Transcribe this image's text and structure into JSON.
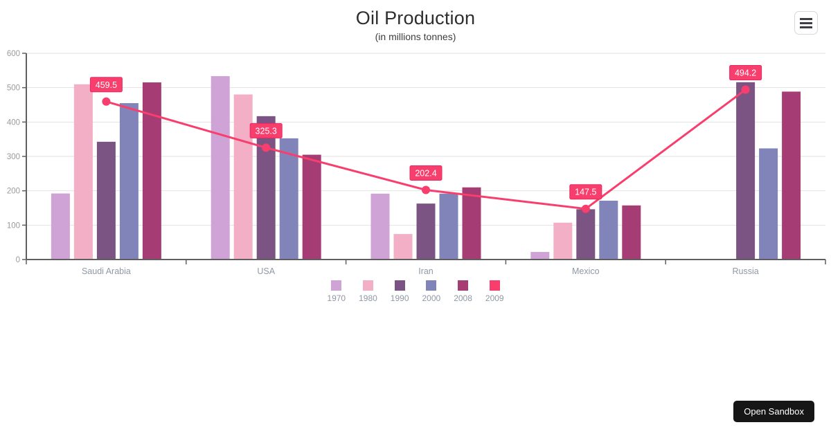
{
  "chart_data": {
    "type": "combo-bar-line",
    "title": "Oil Production",
    "subtitle": "(in millions tonnes)",
    "categories": [
      "Saudi Arabia",
      "USA",
      "Iran",
      "Mexico",
      "Russia"
    ],
    "series": [
      {
        "name": "1970",
        "type": "bar",
        "color": "#CFA3D5",
        "values": [
          192.2,
          533.5,
          191.7,
          22.0,
          null
        ]
      },
      {
        "name": "1980",
        "type": "bar",
        "color": "#F2AFC6",
        "values": [
          509.8,
          480.2,
          74.2,
          107.2,
          null
        ]
      },
      {
        "name": "1990",
        "type": "bar",
        "color": "#7C5484",
        "values": [
          342.6,
          417.1,
          162.8,
          146.3,
          515.9
        ]
      },
      {
        "name": "2000",
        "type": "bar",
        "color": "#8084B8",
        "values": [
          455.0,
          352.6,
          191.7,
          171.2,
          323.3
        ]
      },
      {
        "name": "2008",
        "type": "bar",
        "color": "#A53C73",
        "values": [
          515.3,
          304.9,
          209.9,
          157.4,
          488.5
        ]
      },
      {
        "name": "2009",
        "type": "line",
        "color": "#F83E6D",
        "label_border": "#E8295F",
        "values": [
          459.5,
          325.3,
          202.4,
          147.5,
          494.2
        ],
        "data_labels": [
          "459.5",
          "325.3",
          "202.4",
          "147.5",
          "494.2"
        ]
      }
    ],
    "yticks": [
      0,
      100,
      200,
      300,
      400,
      500,
      600
    ],
    "ylim": [
      0,
      600
    ],
    "grid": true,
    "legend_position": "bottom",
    "colors": {
      "axis_line": "#5f5f5f",
      "grid_line": "#e2e2e2",
      "ytick_label": "#9a9a9a",
      "category_label": "#8f98a5",
      "data_label_text": "#ffffff"
    }
  },
  "header": {
    "menu_icon": "hamburger-icon"
  },
  "footer": {
    "open_sandbox_label": "Open Sandbox"
  }
}
